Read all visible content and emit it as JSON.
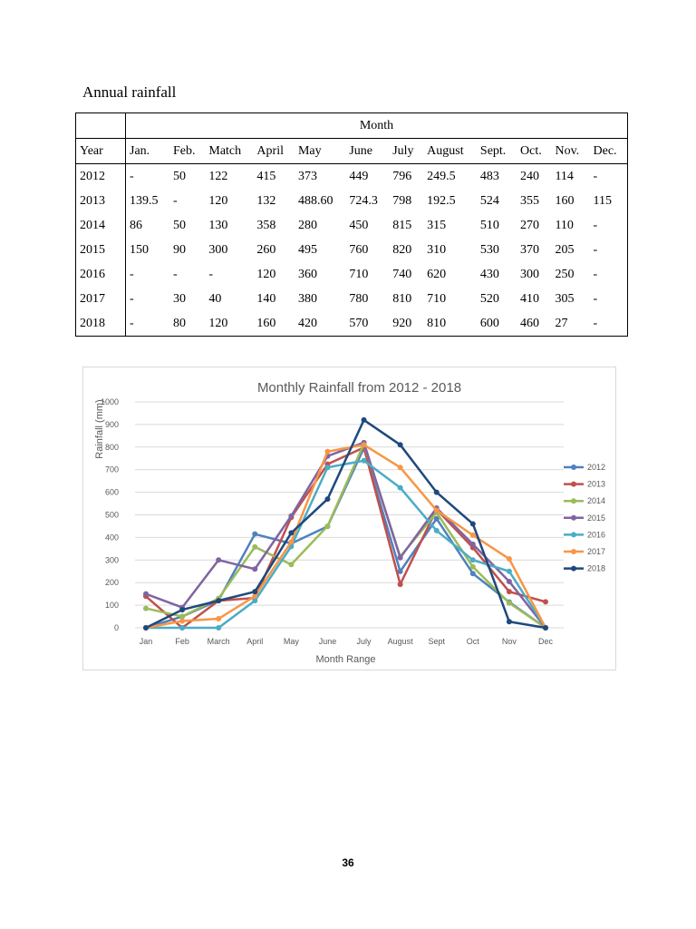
{
  "document": {
    "table_title": "Annual rainfall",
    "page_number": "36"
  },
  "table": {
    "group_header": "Month",
    "columns": [
      "Year",
      "Jan.",
      "Feb.",
      "Match",
      "April",
      "May",
      "June",
      "July",
      "August",
      "Sept.",
      "Oct.",
      "Nov.",
      "Dec."
    ],
    "rows": [
      [
        "2012",
        "-",
        "50",
        "122",
        "415",
        "373",
        "449",
        "796",
        "249.5",
        "483",
        "240",
        "114",
        "-"
      ],
      [
        "2013",
        "139.5",
        "-",
        "120",
        "132",
        "488.60",
        "724.3",
        "798",
        "192.5",
        "524",
        "355",
        "160",
        "115"
      ],
      [
        "2014",
        "86",
        "50",
        "130",
        "358",
        "280",
        "450",
        "815",
        "315",
        "510",
        "270",
        "110",
        "-"
      ],
      [
        "2015",
        "150",
        "90",
        "300",
        "260",
        "495",
        "760",
        "820",
        "310",
        "530",
        "370",
        "205",
        "-"
      ],
      [
        "2016",
        "-",
        "-",
        "-",
        "120",
        "360",
        "710",
        "740",
        "620",
        "430",
        "300",
        "250",
        "-"
      ],
      [
        "2017",
        "-",
        "30",
        "40",
        "140",
        "380",
        "780",
        "810",
        "710",
        "520",
        "410",
        "305",
        "-"
      ],
      [
        "2018",
        "-",
        "80",
        "120",
        "160",
        "420",
        "570",
        "920",
        "810",
        "600",
        "460",
        "27",
        "-"
      ]
    ]
  },
  "chart_data": {
    "type": "line",
    "title": "Monthly Rainfall from 2012 - 2018",
    "xlabel": "Month Range",
    "ylabel": "Rainfall (mm)",
    "ylim": [
      0,
      1000
    ],
    "yticks": [
      0,
      100,
      200,
      300,
      400,
      500,
      600,
      700,
      800,
      900,
      1000
    ],
    "grid": true,
    "legend_position": "right",
    "categories": [
      "Jan",
      "Feb",
      "March",
      "April",
      "May",
      "June",
      "July",
      "August",
      "Sept",
      "Oct",
      "Nov",
      "Dec"
    ],
    "series": [
      {
        "name": "2012",
        "color": "#4f81bd",
        "values": [
          0,
          50,
          122,
          415,
          373,
          449,
          796,
          249.5,
          483,
          240,
          114,
          0
        ]
      },
      {
        "name": "2013",
        "color": "#c0504d",
        "values": [
          139.5,
          0,
          120,
          132,
          488.6,
          724.3,
          798,
          192.5,
          524,
          355,
          160,
          115
        ]
      },
      {
        "name": "2014",
        "color": "#9bbb59",
        "values": [
          86,
          50,
          130,
          358,
          280,
          450,
          815,
          315,
          510,
          270,
          110,
          0
        ]
      },
      {
        "name": "2015",
        "color": "#8064a2",
        "values": [
          150,
          90,
          300,
          260,
          495,
          760,
          820,
          310,
          530,
          370,
          205,
          0
        ]
      },
      {
        "name": "2016",
        "color": "#4bacc6",
        "values": [
          0,
          0,
          0,
          120,
          360,
          710,
          740,
          620,
          430,
          300,
          250,
          0
        ]
      },
      {
        "name": "2017",
        "color": "#f79646",
        "values": [
          0,
          30,
          40,
          140,
          380,
          780,
          810,
          710,
          520,
          410,
          305,
          0
        ]
      },
      {
        "name": "2018",
        "color": "#1f497d",
        "values": [
          0,
          80,
          120,
          160,
          420,
          570,
          920,
          810,
          600,
          460,
          27,
          0
        ]
      }
    ],
    "colors": {
      "gridline": "#d9d9d9",
      "axis_text": "#595959",
      "title_text": "#595959"
    }
  }
}
